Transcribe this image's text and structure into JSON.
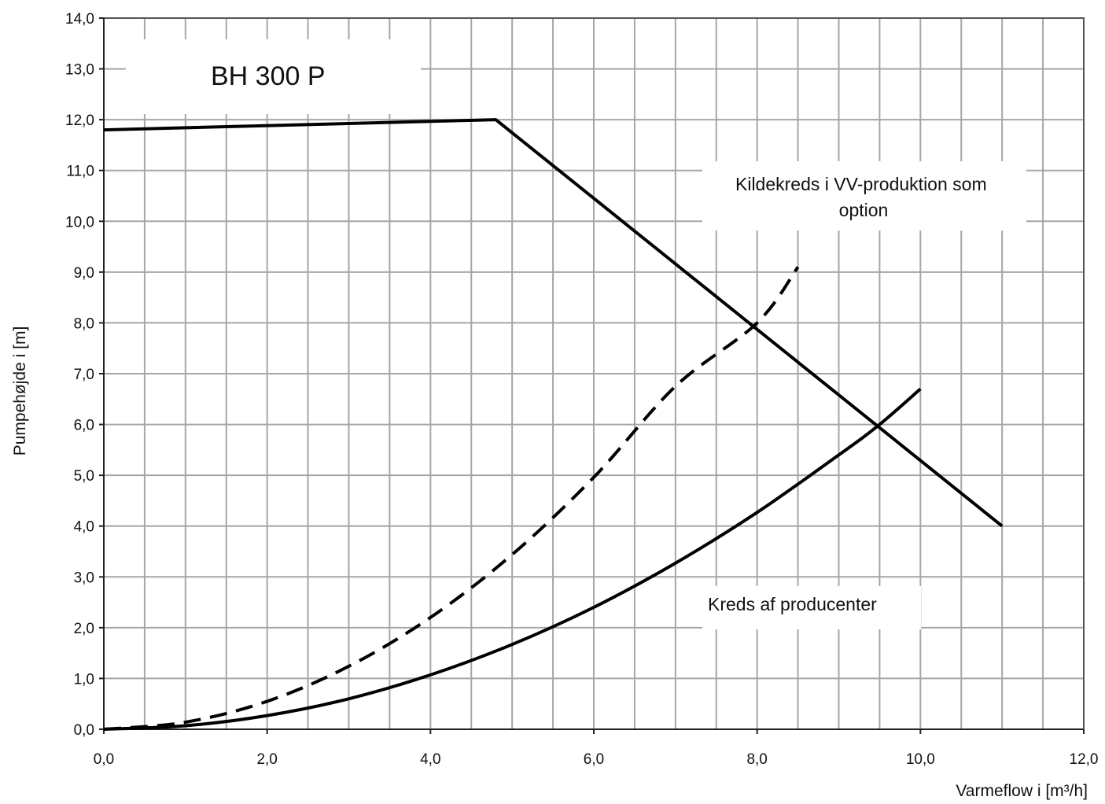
{
  "chart_data": {
    "type": "line",
    "title": "BH 300 P",
    "xlabel": "Varmeflow i [m³/h]",
    "ylabel": "Pumpehøjde i [m]",
    "xlim": [
      0,
      12
    ],
    "ylim": [
      0,
      14
    ],
    "grid": true,
    "x_ticks": [
      "0,0",
      "2,0",
      "4,0",
      "6,0",
      "8,0",
      "10,0",
      "12,0"
    ],
    "y_ticks": [
      "0,0",
      "1,0",
      "2,0",
      "3,0",
      "4,0",
      "5,0",
      "6,0",
      "7,0",
      "8,0",
      "9,0",
      "10,0",
      "11,0",
      "12,0",
      "13,0",
      "14,0"
    ],
    "annotations": [
      {
        "text_lines": [
          "Kildekreds i VV-produktion som",
          "option"
        ]
      },
      {
        "text_lines": [
          "Kreds af producenter"
        ]
      }
    ],
    "series": [
      {
        "style": "solid",
        "points": [
          [
            0,
            11.8
          ],
          [
            4.8,
            12.0
          ],
          [
            11.0,
            4.0
          ]
        ]
      },
      {
        "style": "dashed",
        "points": [
          [
            0,
            0
          ],
          [
            1,
            0.14
          ],
          [
            2,
            0.55
          ],
          [
            3,
            1.24
          ],
          [
            4,
            2.2
          ],
          [
            5,
            3.44
          ],
          [
            6,
            4.96
          ],
          [
            7,
            6.75
          ],
          [
            8,
            8.0
          ],
          [
            8.5,
            9.1
          ]
        ]
      },
      {
        "style": "solid",
        "points": [
          [
            0,
            0
          ],
          [
            1,
            0.07
          ],
          [
            2,
            0.27
          ],
          [
            3,
            0.6
          ],
          [
            4,
            1.07
          ],
          [
            5,
            1.67
          ],
          [
            6,
            2.4
          ],
          [
            7,
            3.27
          ],
          [
            8,
            4.27
          ],
          [
            9,
            5.4
          ],
          [
            9.5,
            6.0
          ],
          [
            10,
            6.7
          ]
        ]
      }
    ]
  }
}
